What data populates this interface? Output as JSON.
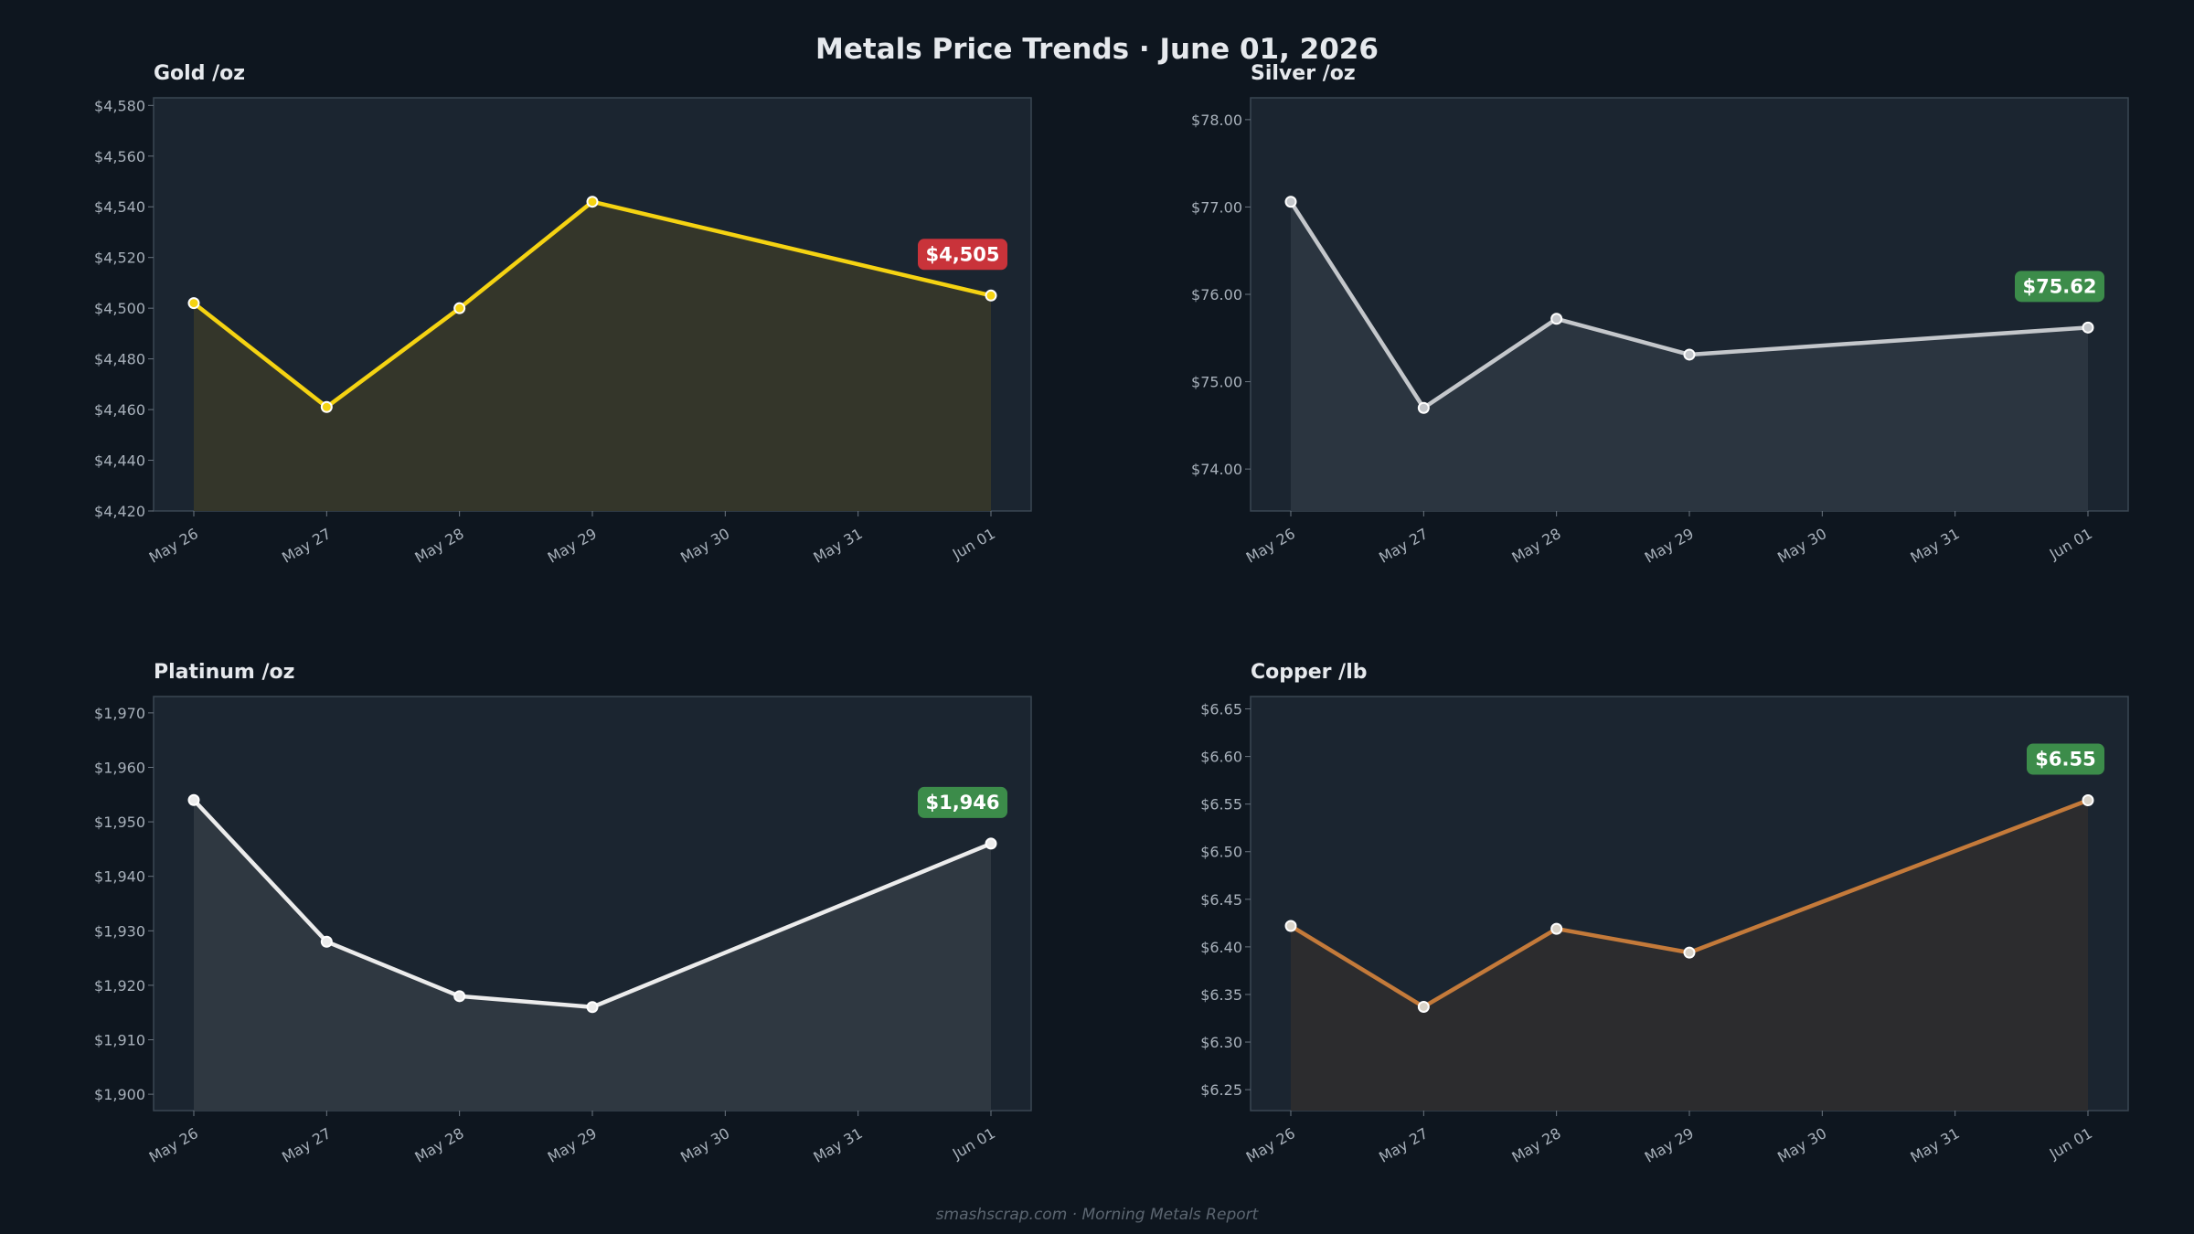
{
  "title": "Metals Price Trends  ·  June 01, 2026",
  "footer": "smashscrap.com  ·  Morning Metals Report",
  "colors": {
    "background": "#0e161f",
    "panel": "#1b2530",
    "panel_border": "#3a4652",
    "up": "#3c8c4a",
    "down": "#c9333a"
  },
  "chart_data": [
    {
      "type": "line",
      "title": "Gold  /oz",
      "categories": [
        "May 26",
        "May 27",
        "May 28",
        "May 29",
        "May 30",
        "May 31",
        "Jun 01"
      ],
      "series": [
        {
          "values": [
            4502,
            4461,
            4500,
            4542,
            null,
            null,
            4505
          ],
          "color": "#f5d312"
        }
      ],
      "ylim": [
        4420,
        4583
      ],
      "yticks": [
        4420,
        4440,
        4460,
        4480,
        4500,
        4520,
        4540,
        4560,
        4580
      ],
      "ytick_labels": [
        "$4,420",
        "$4,440",
        "$4,460",
        "$4,480",
        "$4,500",
        "$4,520",
        "$4,540",
        "$4,560",
        "$4,580"
      ],
      "fill": "#34362a",
      "marker_fill": "#f5d312",
      "badge": {
        "text": "$4,505",
        "color": "#c9333a"
      }
    },
    {
      "type": "line",
      "title": "Silver  /oz",
      "categories": [
        "May 26",
        "May 27",
        "May 28",
        "May 29",
        "May 30",
        "May 31",
        "Jun 01"
      ],
      "series": [
        {
          "values": [
            77.06,
            74.7,
            75.72,
            75.31,
            null,
            null,
            75.62
          ],
          "color": "#c4c7cb"
        }
      ],
      "ylim": [
        73.52,
        78.25
      ],
      "yticks": [
        74,
        75,
        76,
        77,
        78
      ],
      "ytick_labels": [
        "$74.00",
        "$75.00",
        "$76.00",
        "$77.00",
        "$78.00"
      ],
      "fill": "#2b3540",
      "marker_fill": "#c4c7cb",
      "badge": {
        "text": "$75.62",
        "color": "#3c8c4a"
      }
    },
    {
      "type": "line",
      "title": "Platinum  /oz",
      "categories": [
        "May 26",
        "May 27",
        "May 28",
        "May 29",
        "May 30",
        "May 31",
        "Jun 01"
      ],
      "series": [
        {
          "values": [
            1954,
            1928,
            1918,
            1916,
            null,
            null,
            1946
          ],
          "color": "#ececec"
        }
      ],
      "ylim": [
        1897,
        1973
      ],
      "yticks": [
        1900,
        1910,
        1920,
        1930,
        1940,
        1950,
        1960,
        1970
      ],
      "ytick_labels": [
        "$1,900",
        "$1,910",
        "$1,920",
        "$1,930",
        "$1,940",
        "$1,950",
        "$1,960",
        "$1,970"
      ],
      "fill": "#2f3841",
      "marker_fill": "#ececec",
      "badge": {
        "text": "$1,946",
        "color": "#3c8c4a"
      }
    },
    {
      "type": "line",
      "title": "Copper  /lb",
      "categories": [
        "May 26",
        "May 27",
        "May 28",
        "May 29",
        "May 30",
        "May 31",
        "Jun 01"
      ],
      "series": [
        {
          "values": [
            6.422,
            6.337,
            6.419,
            6.394,
            null,
            null,
            6.554
          ],
          "color": "#c47a3a"
        }
      ],
      "ylim": [
        6.228,
        6.663
      ],
      "yticks": [
        6.25,
        6.3,
        6.35,
        6.4,
        6.45,
        6.5,
        6.55,
        6.6,
        6.65
      ],
      "ytick_labels": [
        "$6.25",
        "$6.30",
        "$6.35",
        "$6.40",
        "$6.45",
        "$6.50",
        "$6.55",
        "$6.60",
        "$6.65"
      ],
      "fill": "#2c2c2e",
      "marker_fill": "#d9d3c8",
      "badge": {
        "text": "$6.55",
        "color": "#3c8c4a"
      }
    }
  ]
}
